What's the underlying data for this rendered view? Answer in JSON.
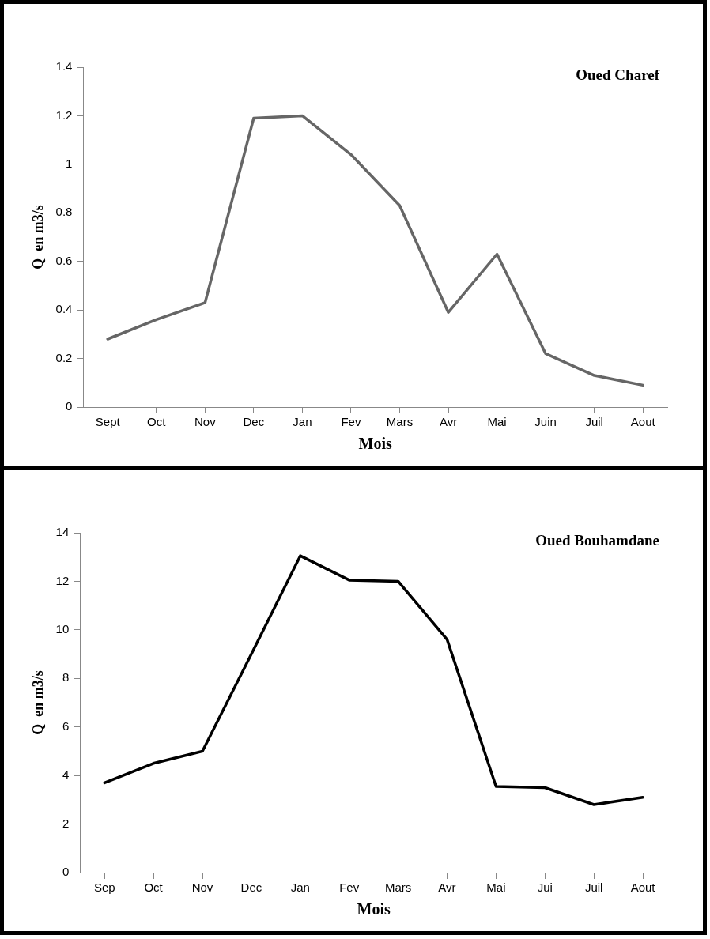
{
  "chart_data": [
    {
      "type": "line",
      "title": "Oued Charef",
      "xlabel": "Mois",
      "ylabel": "Q  en m3/s",
      "categories": [
        "Sept",
        "Oct",
        "Nov",
        "Dec",
        "Jan",
        "Fev",
        "Mars",
        "Avr",
        "Mai",
        "Juin",
        "Juil",
        "Aout"
      ],
      "series": [
        {
          "color": "#666666",
          "values": [
            0.28,
            0.36,
            0.43,
            1.19,
            1.2,
            1.04,
            0.83,
            0.39,
            0.63,
            0.22,
            0.13,
            0.09
          ]
        }
      ],
      "ylim": [
        0,
        1.4
      ],
      "yticks": [
        0,
        {
          "value": 0.2,
          "label": "0.2"
        },
        {
          "value": 0.4,
          "label": "0.4"
        },
        {
          "value": 0.6,
          "label": "0.6"
        },
        {
          "value": 0.8,
          "label": "0.8"
        },
        1,
        {
          "value": 1.2,
          "label": "1.2"
        },
        {
          "value": 1.4,
          "label": "1.4"
        }
      ],
      "grid": false,
      "legend": false,
      "marker": "none",
      "line_style": "solid"
    },
    {
      "type": "line",
      "title": "Oued Bouhamdane",
      "xlabel": "Mois",
      "ylabel": "Q  en m3/s",
      "categories": [
        "Sep",
        "Oct",
        "Nov",
        "Dec",
        "Jan",
        "Fev",
        "Mars",
        "Avr",
        "Mai",
        "Jui",
        "Juil",
        "Aout"
      ],
      "series": [
        {
          "color": "#000000",
          "values": [
            3.7,
            4.5,
            5.0,
            9.0,
            13.05,
            12.05,
            12.0,
            9.6,
            3.55,
            3.5,
            2.8,
            3.1
          ]
        }
      ],
      "ylim": [
        0,
        14
      ],
      "yticks": [
        0,
        2,
        4,
        6,
        8,
        10,
        12,
        14
      ],
      "grid": false,
      "legend": false,
      "marker": "none",
      "line_style": "solid"
    }
  ]
}
